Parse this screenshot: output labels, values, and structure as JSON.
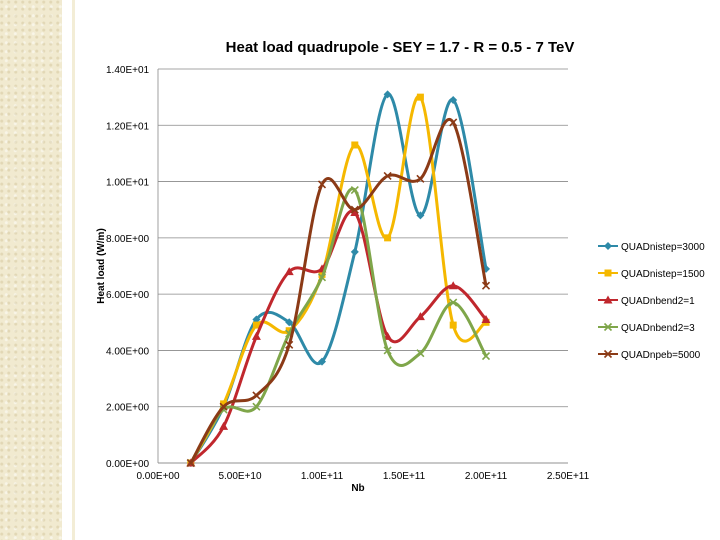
{
  "chart_data": {
    "type": "line",
    "title": "Heat load quadrupole - SEY = 1.7 - R = 0.5 - 7 TeV",
    "xlabel": "Nb",
    "ylabel": "Heat load (W/m)",
    "xlim": [
      0,
      250000000000
    ],
    "ylim": [
      0,
      14
    ],
    "x_tick_labels": [
      "0.00E+00",
      "5.00E+10",
      "1.00E+11",
      "1.50E+11",
      "2.00E+11",
      "2.50E+11"
    ],
    "y_tick_labels": [
      "0.00E+00",
      "2.00E+00",
      "4.00E+00",
      "6.00E+00",
      "8.00E+00",
      "1.00E+01",
      "1.20E+01",
      "1.40E+01"
    ],
    "grid": "horizontal",
    "legend": "right",
    "series": [
      {
        "name": "QUADnistep=3000",
        "color": "#2e8aa8",
        "marker": "diamond",
        "x": [
          20000000000.0,
          40000000000.0,
          60000000000.0,
          80000000000.0,
          100000000000.0,
          120000000000.0,
          140000000000.0,
          160000000000.0,
          180000000000.0,
          200000000000.0
        ],
        "y": [
          0,
          2.0,
          5.1,
          5.0,
          3.6,
          7.5,
          13.1,
          8.8,
          12.9,
          6.9
        ]
      },
      {
        "name": "QUADnistep=1500",
        "color": "#f5b800",
        "marker": "square",
        "x": [
          20000000000.0,
          40000000000.0,
          60000000000.0,
          80000000000.0,
          100000000000.0,
          120000000000.0,
          140000000000.0,
          160000000000.0,
          180000000000.0,
          200000000000.0
        ],
        "y": [
          0,
          2.1,
          4.9,
          4.7,
          6.7,
          11.3,
          8.0,
          13.0,
          4.9,
          5.0
        ]
      },
      {
        "name": "QUADnbend2=1",
        "color": "#c0272d",
        "marker": "triangle",
        "x": [
          20000000000.0,
          40000000000.0,
          60000000000.0,
          80000000000.0,
          100000000000.0,
          120000000000.0,
          140000000000.0,
          160000000000.0,
          180000000000.0,
          200000000000.0
        ],
        "y": [
          0,
          1.3,
          4.5,
          6.8,
          6.9,
          8.9,
          4.5,
          5.2,
          6.3,
          5.1
        ]
      },
      {
        "name": "QUADnbend2=3",
        "color": "#7fa64a",
        "marker": "x",
        "x": [
          20000000000.0,
          40000000000.0,
          60000000000.0,
          80000000000.0,
          100000000000.0,
          120000000000.0,
          140000000000.0,
          160000000000.0,
          180000000000.0,
          200000000000.0
        ],
        "y": [
          0,
          1.9,
          2.0,
          4.6,
          6.6,
          9.7,
          4.0,
          3.9,
          5.7,
          3.8
        ]
      },
      {
        "name": "QUADnpeb=5000",
        "color": "#8b3a16",
        "marker": "x",
        "x": [
          20000000000.0,
          40000000000.0,
          60000000000.0,
          80000000000.0,
          100000000000.0,
          120000000000.0,
          140000000000.0,
          160000000000.0,
          180000000000.0,
          200000000000.0
        ],
        "y": [
          0,
          2.0,
          2.4,
          4.2,
          9.9,
          9.0,
          10.2,
          10.1,
          12.1,
          6.3
        ]
      }
    ]
  }
}
